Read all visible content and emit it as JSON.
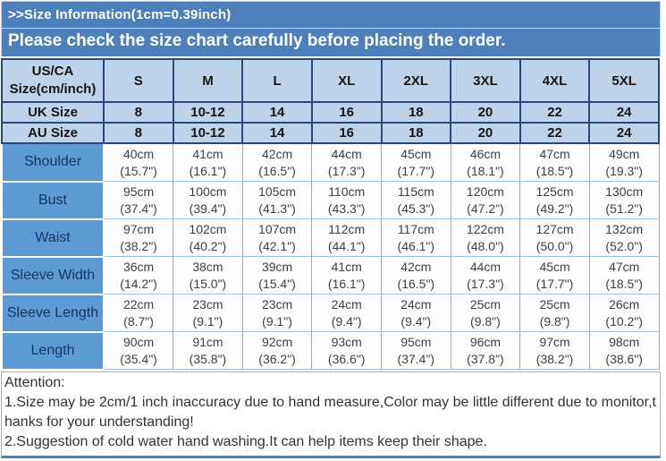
{
  "banner": {
    "title": ">>Size Information(1cm=0.39inch)",
    "subtitle": "Please check the size chart carefully before placing the order."
  },
  "table": {
    "corner": {
      "line1": "US/CA",
      "line2": "Size(cm/inch)"
    },
    "size_columns": [
      "S",
      "M",
      "L",
      "XL",
      "2XL",
      "3XL",
      "4XL",
      "5XL"
    ],
    "region_rows": [
      {
        "label": "UK Size",
        "values": [
          "8",
          "10-12",
          "14",
          "16",
          "18",
          "20",
          "22",
          "24"
        ]
      },
      {
        "label": "AU Size",
        "values": [
          "8",
          "10-12",
          "14",
          "16",
          "18",
          "20",
          "22",
          "24"
        ]
      }
    ],
    "measure_rows": [
      {
        "label": "Shoulder",
        "cm": [
          "40cm",
          "41cm",
          "42cm",
          "44cm",
          "45cm",
          "46cm",
          "47cm",
          "49cm"
        ],
        "inch": [
          "(15.7\")",
          "(16.1\")",
          "(16.5\")",
          "(17.3\")",
          "(17.7\")",
          "(18.1\")",
          "(18.5\")",
          "(19.3\")"
        ]
      },
      {
        "label": "Bust",
        "cm": [
          "95cm",
          "100cm",
          "105cm",
          "110cm",
          "115cm",
          "120cm",
          "125cm",
          "130cm"
        ],
        "inch": [
          "(37.4\")",
          "(39.4\")",
          "(41.3\")",
          "(43.3\")",
          "(45.3\")",
          "(47.2\")",
          "(49.2\")",
          "(51.2\")"
        ]
      },
      {
        "label": "Waist",
        "cm": [
          "97cm",
          "102cm",
          "107cm",
          "112cm",
          "117cm",
          "122cm",
          "127cm",
          "132cm"
        ],
        "inch": [
          "(38.2\")",
          "(40.2\")",
          "(42.1\")",
          "(44.1\")",
          "(46.1\")",
          "(48.0\")",
          "(50.0\")",
          "(52.0\")"
        ]
      },
      {
        "label": "Sleeve Width",
        "cm": [
          "36cm",
          "38cm",
          "39cm",
          "41cm",
          "42cm",
          "44cm",
          "45cm",
          "47cm"
        ],
        "inch": [
          "(14.2\")",
          "(15.0\")",
          "(15.4\")",
          "(16.1\")",
          "(16.5\")",
          "(17.3\")",
          "(17.7\")",
          "(18.5\")"
        ]
      },
      {
        "label": "Sleeve Length",
        "cm": [
          "22cm",
          "23cm",
          "23cm",
          "24cm",
          "24cm",
          "25cm",
          "25cm",
          "26cm"
        ],
        "inch": [
          "(8.7\")",
          "(9.1\")",
          "(9.1\")",
          "(9.4\")",
          "(9.4\")",
          "(9.8\")",
          "(9.8\")",
          "(10.2\")"
        ]
      },
      {
        "label": "Length",
        "cm": [
          "90cm",
          "91cm",
          "92cm",
          "93cm",
          "95cm",
          "96cm",
          "97cm",
          "98cm"
        ],
        "inch": [
          "(35.4\")",
          "(35.8\")",
          "(36.2\")",
          "(36.6\")",
          "(37.4\")",
          "(37.8\")",
          "(38.2\")",
          "(38.6\")"
        ]
      }
    ]
  },
  "attention": {
    "lines": [
      "Attention:",
      "1.Size may be 2cm/1 inch inaccuracy due to hand measure,Color may be little different due to monitor,t",
      "hanks for your understanding!",
      "2.Suggestion of cold water hand washing.It can help items keep their shape."
    ]
  },
  "colors": {
    "banner_bg": "#4d80ba",
    "header_cell_bg": "#bdd3ea",
    "header_border": "#26487c",
    "label_cell_bg": "#5e9ad3",
    "label_text": "#17365d",
    "data_border_horizontal": "#9dc3e6",
    "data_border_vertical": "#a6a6a6",
    "attention_accent": "#4d80ba"
  }
}
